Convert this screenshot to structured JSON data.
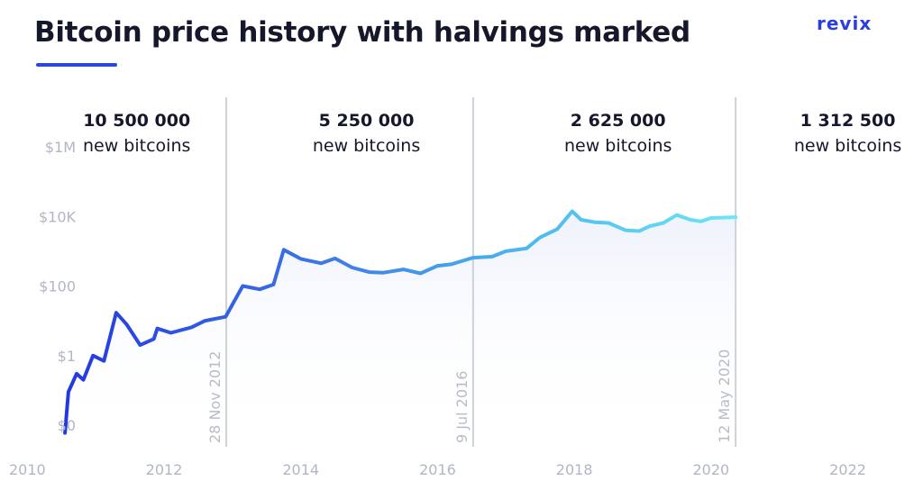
{
  "header": {
    "title": "Bitcoin price history with halvings marked",
    "brand": "revix",
    "accent_color": "#2a46e0"
  },
  "chart_data": {
    "type": "line",
    "title": "Bitcoin price history with halvings marked",
    "xlabel": "",
    "ylabel": "",
    "y_scale": "log",
    "xlim": [
      2009.6,
      2023.1
    ],
    "ylim": [
      0.01,
      1000000
    ],
    "x_ticks": [
      {
        "value": 2010,
        "label": "2010"
      },
      {
        "value": 2012,
        "label": "2012"
      },
      {
        "value": 2014,
        "label": "2014"
      },
      {
        "value": 2016,
        "label": "2016"
      },
      {
        "value": 2018,
        "label": "2018"
      },
      {
        "value": 2020,
        "label": "2020"
      },
      {
        "value": 2022,
        "label": "2022"
      }
    ],
    "y_ticks": [
      {
        "value": 0.01,
        "label": "$0"
      },
      {
        "value": 1,
        "label": "$1"
      },
      {
        "value": 100,
        "label": "$100"
      },
      {
        "value": 10000,
        "label": "$10K"
      },
      {
        "value": 1000000,
        "label": "$1M"
      }
    ],
    "grid": false,
    "line_gradient": [
      "#2438e0",
      "#3a6ee4",
      "#4bb4ec",
      "#6fe6f4"
    ],
    "area_fill": "#eef2fb",
    "series": [
      {
        "name": "",
        "points": [
          [
            2010.55,
            0.006
          ],
          [
            2010.6,
            0.09
          ],
          [
            2010.72,
            0.3
          ],
          [
            2010.82,
            0.2
          ],
          [
            2010.96,
            1.0
          ],
          [
            2011.12,
            0.7
          ],
          [
            2011.3,
            17.0
          ],
          [
            2011.45,
            8.0
          ],
          [
            2011.65,
            2.0
          ],
          [
            2011.85,
            3.0
          ],
          [
            2011.9,
            6.0
          ],
          [
            2012.1,
            4.5
          ],
          [
            2012.4,
            6.5
          ],
          [
            2012.6,
            10.0
          ],
          [
            2012.9,
            13.0
          ],
          [
            2013.15,
            100.0
          ],
          [
            2013.4,
            80.0
          ],
          [
            2013.6,
            110.0
          ],
          [
            2013.75,
            1100.0
          ],
          [
            2014.0,
            600.0
          ],
          [
            2014.3,
            450.0
          ],
          [
            2014.5,
            620.0
          ],
          [
            2014.75,
            340.0
          ],
          [
            2015.0,
            250.0
          ],
          [
            2015.2,
            240.0
          ],
          [
            2015.5,
            300.0
          ],
          [
            2015.75,
            230.0
          ],
          [
            2016.0,
            380.0
          ],
          [
            2016.2,
            420.0
          ],
          [
            2016.52,
            650.0
          ],
          [
            2016.8,
            700.0
          ],
          [
            2017.0,
            1000.0
          ],
          [
            2017.3,
            1200.0
          ],
          [
            2017.5,
            2500.0
          ],
          [
            2017.75,
            4300.0
          ],
          [
            2017.97,
            14000.0
          ],
          [
            2018.1,
            8000.0
          ],
          [
            2018.3,
            6800.0
          ],
          [
            2018.5,
            6500.0
          ],
          [
            2018.75,
            4000.0
          ],
          [
            2018.95,
            3800.0
          ],
          [
            2019.1,
            5200.0
          ],
          [
            2019.3,
            6500.0
          ],
          [
            2019.5,
            11000.0
          ],
          [
            2019.7,
            8000.0
          ],
          [
            2019.85,
            7200.0
          ],
          [
            2020.0,
            9000.0
          ],
          [
            2020.36,
            9500.0
          ]
        ]
      }
    ],
    "halvings": [
      {
        "x": 2012.91,
        "date": "28 Nov 2012"
      },
      {
        "x": 2016.52,
        "date": "9 Jul 2016"
      },
      {
        "x": 2020.36,
        "date": "12 May 2020"
      }
    ],
    "eras": [
      {
        "x_center": 2011.6,
        "amount": "10 500 000",
        "label": "new bitcoins"
      },
      {
        "x_center": 2014.96,
        "amount": "5 250 000",
        "label": "new bitcoins"
      },
      {
        "x_center": 2018.64,
        "amount": "2 625 000",
        "label": "new bitcoins"
      },
      {
        "x_center": 2022.0,
        "amount": "1 312 500",
        "label": "new bitcoins"
      }
    ]
  }
}
